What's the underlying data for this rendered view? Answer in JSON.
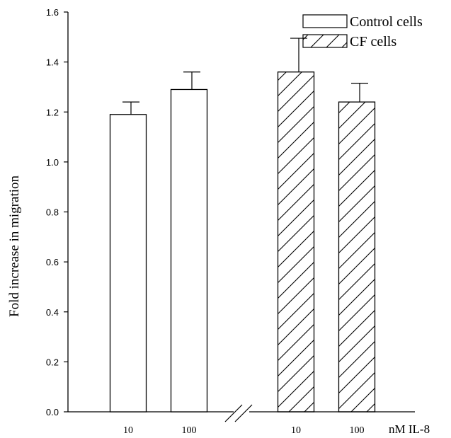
{
  "chart_data": {
    "type": "bar",
    "title": "",
    "ylabel": "Fold increase in migration",
    "xunit_label": "nM IL-8",
    "ylim": [
      0.0,
      1.6
    ],
    "yticks": [
      "0.0",
      "0.2",
      "0.4",
      "0.6",
      "0.8",
      "1.0",
      "1.2",
      "1.4",
      "1.6"
    ],
    "grid": false,
    "legend_position": "top-right",
    "axis_break": true,
    "series": [
      {
        "name": "Control cells",
        "fill": "none",
        "categories": [
          "10",
          "100"
        ],
        "values": [
          1.19,
          1.29
        ],
        "errors": [
          0.05,
          0.07
        ]
      },
      {
        "name": "CF cells",
        "fill": "hatched",
        "categories": [
          "10",
          "100"
        ],
        "values": [
          1.36,
          1.24
        ],
        "errors": [
          0.135,
          0.075
        ]
      }
    ]
  },
  "colors": {
    "ink": "#000000",
    "background": "#ffffff"
  }
}
